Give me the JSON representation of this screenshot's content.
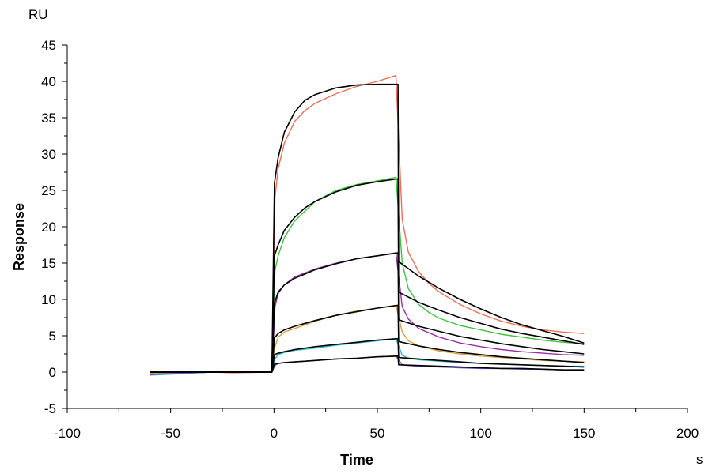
{
  "chart_data": {
    "type": "line",
    "title": "",
    "xlabel": "Time",
    "ylabel": "Response",
    "x_unit": "s",
    "y_unit": "RU",
    "xlim": [
      -100,
      200
    ],
    "ylim": [
      -5,
      45
    ],
    "x_ticks": [
      -100,
      -50,
      0,
      50,
      100,
      150,
      200
    ],
    "y_ticks": [
      -5,
      0,
      5,
      10,
      15,
      20,
      25,
      30,
      35,
      40,
      45
    ],
    "grid": false,
    "legend": "none",
    "series": [
      {
        "color": "#f06e55",
        "kind": "measured",
        "x": [
          -60,
          -40,
          -20,
          -1,
          0.5,
          2,
          5,
          10,
          15,
          20,
          30,
          40,
          50,
          59,
          62,
          65,
          70,
          75,
          80,
          90,
          100,
          110,
          120,
          130,
          140,
          150
        ],
        "y": [
          -0.2,
          0.1,
          -0.1,
          0,
          24,
          28,
          31.5,
          34.5,
          36,
          37,
          38.3,
          39.3,
          40,
          40.8,
          21,
          16.5,
          13.8,
          12.2,
          11,
          9.3,
          8,
          7,
          6.3,
          5.8,
          5.5,
          5.3
        ]
      },
      {
        "color": "#3cc43c",
        "kind": "measured",
        "x": [
          -60,
          -30,
          -1,
          0.5,
          2,
          5,
          10,
          20,
          30,
          40,
          50,
          59,
          62,
          65,
          70,
          75,
          80,
          90,
          100,
          110,
          120,
          130,
          140,
          150
        ],
        "y": [
          -0.3,
          0,
          0,
          14,
          16,
          18.5,
          20.8,
          23.5,
          25,
          25.8,
          26.3,
          26.8,
          15,
          11.5,
          9.3,
          8.2,
          7.4,
          6.4,
          5.8,
          5.2,
          4.8,
          4.4,
          4.1,
          3.9
        ]
      },
      {
        "color": "#9b2fa8",
        "kind": "measured",
        "x": [
          -60,
          -30,
          -1,
          0.5,
          2,
          5,
          10,
          20,
          30,
          40,
          50,
          59,
          62,
          65,
          70,
          80,
          90,
          100,
          110,
          120,
          130,
          140,
          150
        ],
        "y": [
          -0.4,
          0,
          0,
          9,
          10.8,
          12,
          13.1,
          14.2,
          15,
          15.6,
          16,
          16.4,
          9,
          7.3,
          6,
          4.8,
          4,
          3.5,
          3.1,
          2.8,
          2.6,
          2.4,
          2.3
        ]
      },
      {
        "color": "#d9a040",
        "kind": "measured",
        "x": [
          -60,
          -30,
          -1,
          0.5,
          2,
          5,
          10,
          20,
          30,
          40,
          50,
          59,
          62,
          65,
          70,
          80,
          90,
          100,
          110,
          120,
          130,
          140,
          150
        ],
        "y": [
          -0.2,
          0,
          0,
          3.5,
          4.8,
          5.5,
          6,
          7,
          7.8,
          8.4,
          8.8,
          9.2,
          5.5,
          4.3,
          3.6,
          2.9,
          2.5,
          2.2,
          2,
          1.8,
          1.6,
          1.5,
          1.4
        ]
      },
      {
        "color": "#2ab8c8",
        "kind": "measured",
        "x": [
          -58,
          -30,
          -1,
          0.5,
          2,
          5,
          10,
          20,
          30,
          40,
          50,
          59,
          62,
          65,
          70,
          80,
          90,
          100,
          110,
          120,
          130,
          140,
          150
        ],
        "y": [
          -0.4,
          0,
          0,
          1.8,
          2.4,
          2.7,
          3,
          3.3,
          3.7,
          4,
          4.3,
          4.6,
          2.3,
          1.9,
          1.7,
          1.5,
          1.3,
          1.2,
          1.1,
          1,
          0.9,
          0.8,
          0.8
        ]
      },
      {
        "color": "#6a5ad0",
        "kind": "measured",
        "x": [
          -60,
          -30,
          -1,
          0.5,
          2,
          5,
          10,
          20,
          30,
          40,
          50,
          59,
          62,
          65,
          70,
          80,
          90,
          100,
          110,
          120,
          130,
          140,
          150
        ],
        "y": [
          -0.3,
          0,
          0,
          0.9,
          1.2,
          1.3,
          1.4,
          1.6,
          1.8,
          1.9,
          2.1,
          2.2,
          1,
          0.9,
          0.8,
          0.7,
          0.6,
          0.5,
          0.5,
          0.4,
          0.4,
          0.3,
          0.3
        ]
      },
      {
        "color": "#000000",
        "kind": "fit",
        "x": [
          -60,
          -1,
          0.2,
          2,
          5,
          10,
          15,
          20,
          30,
          40,
          50,
          60,
          60.3,
          70,
          80,
          90,
          100,
          110,
          120,
          130,
          140,
          150
        ],
        "y": [
          0,
          0,
          26,
          29.5,
          33,
          35.8,
          37.4,
          38.2,
          39.1,
          39.5,
          39.6,
          39.6,
          15.2,
          13.2,
          11.5,
          10,
          8.7,
          7.5,
          6.5,
          5.7,
          4.9,
          4
        ]
      },
      {
        "color": "#000000",
        "kind": "fit",
        "x": [
          -60,
          -1,
          0.2,
          2,
          5,
          10,
          15,
          20,
          30,
          40,
          50,
          60,
          60.3,
          70,
          80,
          90,
          100,
          110,
          120,
          130,
          140,
          150
        ],
        "y": [
          0,
          0,
          16,
          17.5,
          19.5,
          21.3,
          22.6,
          23.5,
          24.8,
          25.7,
          26.2,
          26.6,
          11,
          9.6,
          8.5,
          7.5,
          6.7,
          5.9,
          5.3,
          4.8,
          4.3,
          3.8
        ]
      },
      {
        "color": "#000000",
        "kind": "fit",
        "x": [
          -60,
          -1,
          0.2,
          2,
          5,
          10,
          20,
          30,
          40,
          50,
          60,
          60.3,
          70,
          80,
          90,
          100,
          110,
          120,
          130,
          140,
          150
        ],
        "y": [
          0,
          0,
          9.5,
          11,
          12,
          12.9,
          14.1,
          14.9,
          15.6,
          16,
          16.4,
          7.2,
          6.3,
          5.6,
          4.9,
          4.4,
          3.9,
          3.5,
          3.1,
          2.8,
          2.5
        ]
      },
      {
        "color": "#000000",
        "kind": "fit",
        "x": [
          -60,
          -1,
          0.2,
          2,
          5,
          10,
          20,
          30,
          40,
          50,
          60,
          60.3,
          70,
          80,
          90,
          100,
          110,
          120,
          130,
          140,
          150
        ],
        "y": [
          0,
          0,
          4.7,
          5.3,
          5.8,
          6.3,
          7.1,
          7.8,
          8.3,
          8.8,
          9.2,
          4.2,
          3.6,
          3.1,
          2.7,
          2.4,
          2.1,
          1.9,
          1.7,
          1.5,
          1.3
        ]
      },
      {
        "color": "#000000",
        "kind": "fit",
        "x": [
          -60,
          -1,
          0.2,
          2,
          5,
          10,
          20,
          30,
          40,
          50,
          60,
          60.3,
          70,
          80,
          90,
          100,
          110,
          120,
          130,
          140,
          150
        ],
        "y": [
          0,
          0,
          2.4,
          2.6,
          2.8,
          3.1,
          3.5,
          3.8,
          4.1,
          4.4,
          4.6,
          2,
          1.8,
          1.6,
          1.4,
          1.2,
          1.1,
          1,
          0.9,
          0.8,
          0.7
        ]
      },
      {
        "color": "#000000",
        "kind": "fit",
        "x": [
          -60,
          -1,
          0.2,
          2,
          5,
          10,
          20,
          30,
          40,
          50,
          60,
          60.3,
          70,
          80,
          90,
          100,
          110,
          120,
          130,
          140,
          150
        ],
        "y": [
          0,
          0,
          1.1,
          1.2,
          1.3,
          1.4,
          1.6,
          1.8,
          1.9,
          2.1,
          2.2,
          1,
          0.9,
          0.8,
          0.7,
          0.6,
          0.5,
          0.5,
          0.4,
          0.3,
          0.3
        ]
      }
    ]
  }
}
